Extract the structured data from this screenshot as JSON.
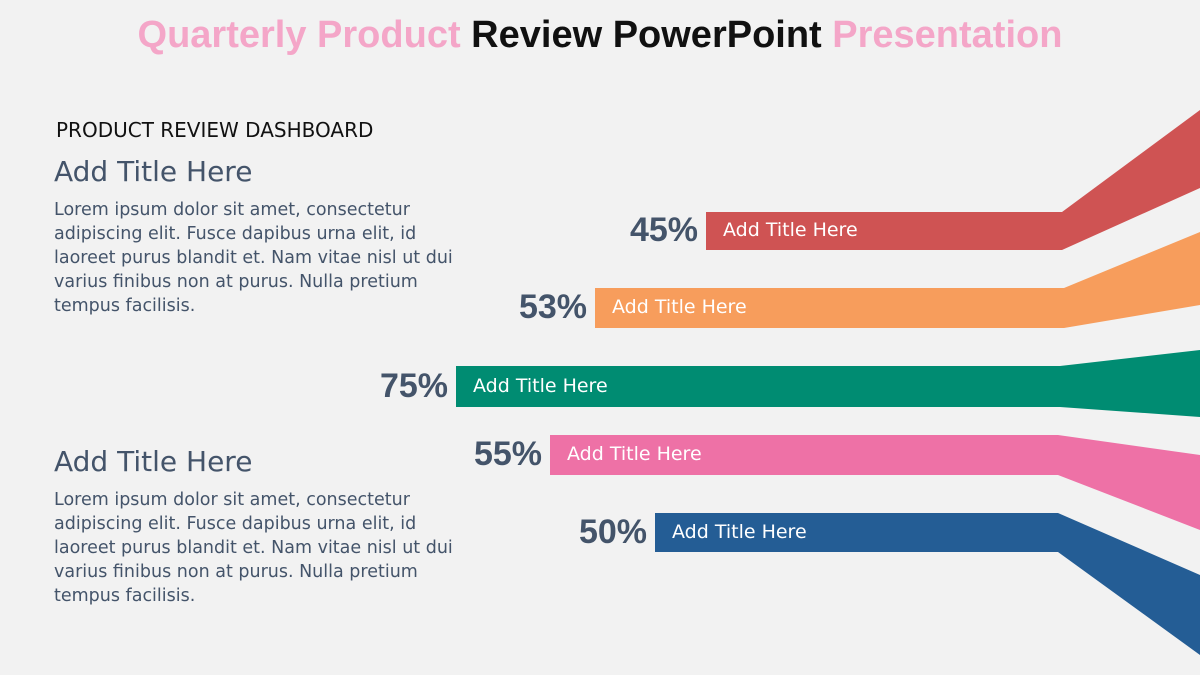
{
  "title": {
    "part1": "Quarterly Product ",
    "part2": "Review PowerPoint",
    "part3": " Presentation"
  },
  "subtitle": "PRODUCT REVIEW DASHBOARD",
  "blocks": [
    {
      "heading": "Add Title Here",
      "body": "Lorem ipsum dolor sit amet, consectetur adipiscing elit. Fusce dapibus urna elit, id laoreet purus blandit et. Nam vitae nisl ut dui varius finibus non at purus. Nulla pretium tempus facilisis."
    },
    {
      "heading": "Add Title Here",
      "body": "Lorem ipsum dolor sit amet, consectetur adipiscing elit. Fusce dapibus urna elit, id laoreet purus blandit et. Nam vitae nisl ut dui varius finibus non at purus. Nulla pretium tempus facilisis."
    }
  ],
  "bars": [
    {
      "percent": "45%",
      "label": "Add Title Here",
      "color": "#cf5353"
    },
    {
      "percent": "53%",
      "label": "Add Title Here",
      "color": "#f79d5c"
    },
    {
      "percent": "75%",
      "label": "Add Title Here",
      "color": "#008c72"
    },
    {
      "percent": "55%",
      "label": "Add Title Here",
      "color": "#ee71a6"
    },
    {
      "percent": "50%",
      "label": "Add Title Here",
      "color": "#245d95"
    }
  ]
}
